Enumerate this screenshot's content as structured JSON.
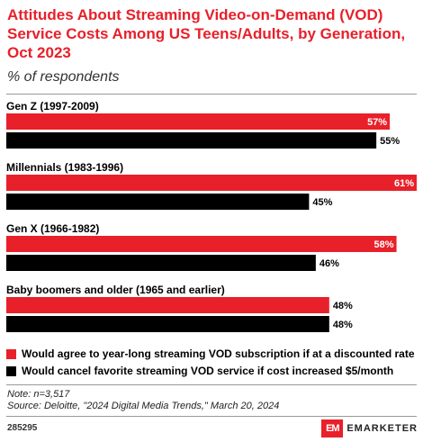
{
  "header": {
    "title": "Attitudes About Streaming Video-on-Demand (VOD) Service Costs Among US Teens/Adults, by Generation, Oct 2023",
    "subtitle": "% of respondents"
  },
  "colors": {
    "accent": "#e8202a",
    "series_2": "#000000",
    "rule": "#999999"
  },
  "chart_data": {
    "type": "bar",
    "orientation": "horizontal",
    "categories": [
      "Gen Z (1997-2009)",
      "Millennials (1983-1996)",
      "Gen X (1966-1982)",
      "Baby boomers and older (1965 and earlier)"
    ],
    "series": [
      {
        "name": "Would agree to year-long streaming VOD subscription if at a discounted rate",
        "color": "#e8202a",
        "values": [
          57,
          61,
          58,
          48
        ]
      },
      {
        "name": "Would cancel favorite streaming VOD service if cost increased $5/month",
        "color": "#000000",
        "values": [
          55,
          45,
          46,
          48
        ]
      }
    ],
    "value_suffix": "%",
    "xlim": [
      0,
      61
    ],
    "grid": false,
    "legend_position": "bottom-left"
  },
  "notes": {
    "note": "Note: n=3,517",
    "source": "Source: Deloitte, \"2024 Digital Media Trends,\" March 20, 2024"
  },
  "footer": {
    "chart_id": "285295",
    "brand_mark": "EM",
    "brand_name": "EMARKETER"
  }
}
